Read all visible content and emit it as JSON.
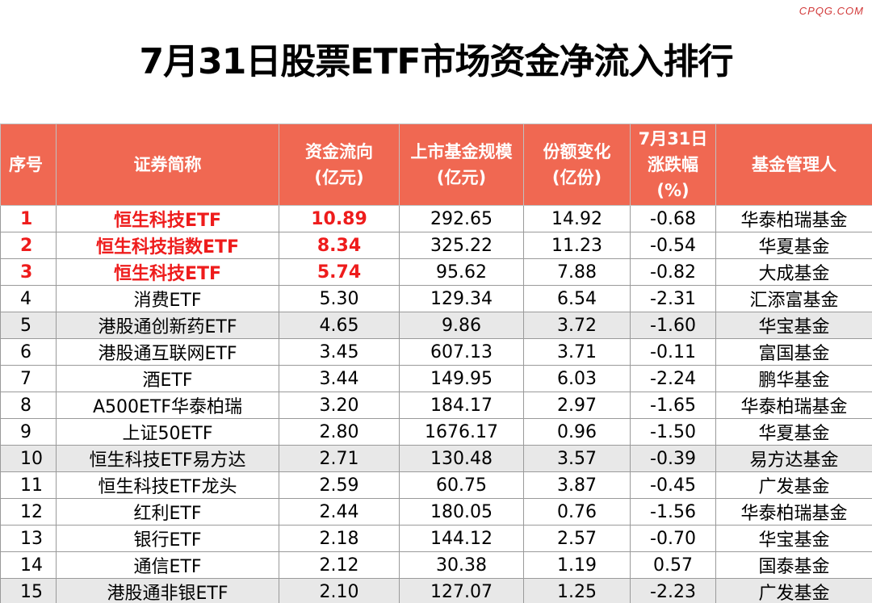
{
  "watermark": "CPQG.COM",
  "title": "7月31日股票ETF市场资金净流入排行",
  "headers": {
    "rank": "序号",
    "name": "证券简称",
    "flow_1": "资金流向",
    "flow_2": "(亿元)",
    "scale_1": "上市基金规模",
    "scale_2": "(亿元)",
    "share_1": "份额变化",
    "share_2": "(亿份)",
    "chg_1": "7月31日",
    "chg_2": "涨跌幅",
    "chg_3": "(%)",
    "manager": "基金管理人"
  },
  "rows": [
    {
      "rank": "1",
      "name": "恒生科技ETF",
      "flow": "10.89",
      "scale": "292.65",
      "share": "14.92",
      "chg": "-0.68",
      "manager": "华泰柏瑞基金"
    },
    {
      "rank": "2",
      "name": "恒生科技指数ETF",
      "flow": "8.34",
      "scale": "325.22",
      "share": "11.23",
      "chg": "-0.54",
      "manager": "华夏基金"
    },
    {
      "rank": "3",
      "name": "恒生科技ETF",
      "flow": "5.74",
      "scale": "95.62",
      "share": "7.88",
      "chg": "-0.82",
      "manager": "大成基金"
    },
    {
      "rank": "4",
      "name": "消费ETF",
      "flow": "5.30",
      "scale": "129.34",
      "share": "6.54",
      "chg": "-2.31",
      "manager": "汇添富基金"
    },
    {
      "rank": "5",
      "name": "港股通创新药ETF",
      "flow": "4.65",
      "scale": "9.86",
      "share": "3.72",
      "chg": "-1.60",
      "manager": "华宝基金"
    },
    {
      "rank": "6",
      "name": "港股通互联网ETF",
      "flow": "3.45",
      "scale": "607.13",
      "share": "3.71",
      "chg": "-0.11",
      "manager": "富国基金"
    },
    {
      "rank": "7",
      "name": "酒ETF",
      "flow": "3.44",
      "scale": "149.95",
      "share": "6.03",
      "chg": "-2.24",
      "manager": "鹏华基金"
    },
    {
      "rank": "8",
      "name": "A500ETF华泰柏瑞",
      "flow": "3.20",
      "scale": "184.17",
      "share": "2.97",
      "chg": "-1.65",
      "manager": "华泰柏瑞基金"
    },
    {
      "rank": "9",
      "name": "上证50ETF",
      "flow": "2.80",
      "scale": "1676.17",
      "share": "0.96",
      "chg": "-1.50",
      "manager": "华夏基金"
    },
    {
      "rank": "10",
      "name": "恒生科技ETF易方达",
      "flow": "2.71",
      "scale": "130.48",
      "share": "3.57",
      "chg": "-0.39",
      "manager": "易方达基金"
    },
    {
      "rank": "11",
      "name": "恒生科技ETF龙头",
      "flow": "2.59",
      "scale": "60.75",
      "share": "3.87",
      "chg": "-0.45",
      "manager": "广发基金"
    },
    {
      "rank": "12",
      "name": "红利ETF",
      "flow": "2.44",
      "scale": "180.05",
      "share": "0.76",
      "chg": "-1.56",
      "manager": "华泰柏瑞基金"
    },
    {
      "rank": "13",
      "name": "银行ETF",
      "flow": "2.18",
      "scale": "144.12",
      "share": "2.57",
      "chg": "-0.70",
      "manager": "华宝基金"
    },
    {
      "rank": "14",
      "name": "通信ETF",
      "flow": "2.12",
      "scale": "30.38",
      "share": "1.19",
      "chg": "0.57",
      "manager": "国泰基金"
    },
    {
      "rank": "15",
      "name": "港股通非银ETF",
      "flow": "2.10",
      "scale": "127.07",
      "share": "1.25",
      "chg": "-2.23",
      "manager": "广发基金"
    }
  ],
  "colors": {
    "header_bg": "#f06852",
    "highlight_text": "#ee1c1c",
    "shaded_row": "#e8e8e8"
  }
}
